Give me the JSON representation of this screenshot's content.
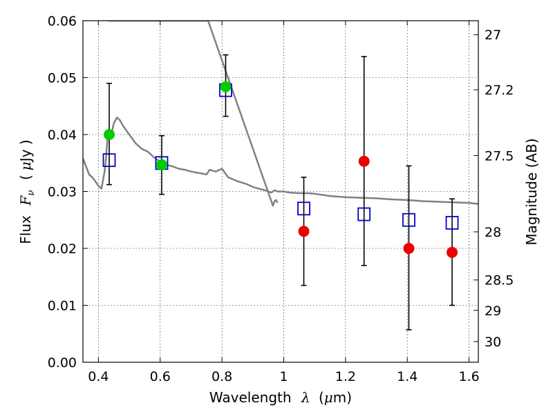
{
  "chart_data": {
    "type": "scatter",
    "title": "",
    "xlabel": "Wavelength",
    "xlabel_symbol": "λ",
    "xlabel_unit_open": "(",
    "xlabel_unit_mu": "μ",
    "xlabel_unit_rest": "m)",
    "ylabel": "Flux",
    "ylabel_symbol": "F",
    "ylabel_subscript": "ν",
    "ylabel_unit_open": "(",
    "ylabel_unit_mu": "μ",
    "ylabel_unit_rest": "Jy )",
    "y2label": "Magnitude (AB)",
    "xlim": [
      0.35,
      1.63
    ],
    "ylim": [
      0.0,
      0.06
    ],
    "grid": true,
    "x_ticks": [
      {
        "value": 0.4,
        "label": "0.4"
      },
      {
        "value": 0.6,
        "label": "0.6"
      },
      {
        "value": 0.8,
        "label": "0.8"
      },
      {
        "value": 1.0,
        "label": "1"
      },
      {
        "value": 1.2,
        "label": "1.2"
      },
      {
        "value": 1.4,
        "label": "1.4"
      },
      {
        "value": 1.6,
        "label": "1.6"
      }
    ],
    "y_ticks": [
      {
        "value": 0.0,
        "label": "0.00"
      },
      {
        "value": 0.01,
        "label": "0.01"
      },
      {
        "value": 0.02,
        "label": "0.02"
      },
      {
        "value": 0.03,
        "label": "0.03"
      },
      {
        "value": 0.04,
        "label": "0.04"
      },
      {
        "value": 0.05,
        "label": "0.05"
      },
      {
        "value": 0.06,
        "label": "0.06"
      }
    ],
    "mag_ticks": [
      {
        "value": 27.0,
        "label": "27"
      },
      {
        "value": 27.2,
        "label": "27.2"
      },
      {
        "value": 27.5,
        "label": "27.5"
      },
      {
        "value": 28.0,
        "label": "28"
      },
      {
        "value": 28.5,
        "label": "28.5"
      },
      {
        "value": 29.0,
        "label": "29"
      },
      {
        "value": 30.0,
        "label": "30"
      }
    ],
    "series": [
      {
        "type": "line",
        "color": "#808080",
        "x": [
          0.35,
          0.37,
          0.38,
          0.39,
          0.4,
          0.41,
          0.42,
          0.425,
          0.43,
          0.44,
          0.45,
          0.46,
          0.47,
          0.48,
          0.5,
          0.52,
          0.54,
          0.56,
          0.58,
          0.6,
          0.62,
          0.64,
          0.66,
          0.68,
          0.7,
          0.72,
          0.74,
          0.75,
          0.76,
          0.78,
          0.8,
          0.82,
          0.85,
          0.88,
          0.9,
          0.92,
          0.94,
          0.96,
          0.97,
          0.98,
          0.99,
          1.0,
          1.02,
          1.05,
          1.08,
          1.1,
          1.15,
          1.2,
          1.25,
          1.3,
          1.35,
          1.4,
          1.45,
          1.5,
          1.55,
          1.6,
          1.63
        ],
        "y": [
          0.0358,
          0.033,
          0.0325,
          0.0318,
          0.031,
          0.0305,
          0.0335,
          0.036,
          0.04,
          0.0395,
          0.042,
          0.043,
          0.0425,
          0.0415,
          0.04,
          0.0385,
          0.0375,
          0.037,
          0.036,
          0.0352,
          0.0347,
          0.0344,
          0.034,
          0.0338,
          0.0335,
          0.0333,
          0.0331,
          0.033,
          0.0338,
          0.0335,
          0.034,
          0.0325,
          0.0318,
          0.0313,
          0.0308,
          0.0305,
          0.0302,
          0.0298,
          0.0302,
          0.03,
          0.03,
          0.03,
          0.0298,
          0.0297,
          0.0297,
          0.0296,
          0.0292,
          0.029,
          0.0289,
          0.0288,
          0.0286,
          0.0285,
          0.0283,
          0.0282,
          0.0281,
          0.028,
          0.0278
        ]
      },
      {
        "type": "line",
        "color": "#808080",
        "x": [
          0.432,
          0.437,
          0.442,
          0.455,
          0.46,
          0.466,
          0.47,
          0.55,
          0.553,
          0.556,
          0.559,
          0.562,
          0.565,
          0.568,
          0.74,
          0.743,
          0.746,
          0.749,
          0.752,
          0.755,
          0.965,
          0.97,
          0.975,
          0.98
        ],
        "y": [
          0.06,
          0.06,
          0.06,
          0.06,
          0.06,
          0.06,
          0.06,
          0.06,
          0.06,
          0.06,
          0.06,
          0.06,
          0.06,
          0.06,
          0.06,
          0.06,
          0.06,
          0.06,
          0.06,
          0.06,
          0.0275,
          0.0283,
          0.0285,
          0.028
        ]
      },
      {
        "type": "errorbar",
        "color": "#000000",
        "x": [
          0.435,
          0.605,
          0.812,
          1.065,
          1.26,
          1.405,
          1.545
        ],
        "y": [
          0.0355,
          0.035,
          0.0475,
          0.027,
          0.0262,
          0.025,
          0.0245
        ],
        "err_low": [
          0.0312,
          0.0295,
          0.0432,
          0.0135,
          0.017,
          0.0057,
          0.01
        ],
        "err_high": [
          0.049,
          0.0398,
          0.054,
          0.0325,
          0.0537,
          0.0345,
          0.0287
        ]
      },
      {
        "type": "scatter",
        "marker": "square",
        "color": "#0000cc",
        "x": [
          0.435,
          0.605,
          0.812,
          1.065,
          1.26,
          1.405,
          1.545
        ],
        "y": [
          0.0355,
          0.035,
          0.0478,
          0.027,
          0.026,
          0.025,
          0.0245
        ]
      },
      {
        "type": "scatter",
        "marker": "circle",
        "color": "#00cc00",
        "x": [
          0.435,
          0.605,
          0.812
        ],
        "y": [
          0.04,
          0.0347,
          0.0484
        ]
      },
      {
        "type": "scatter",
        "marker": "circle",
        "color": "#ee0000",
        "x": [
          1.065,
          1.26,
          1.405,
          1.545
        ],
        "y": [
          0.023,
          0.0353,
          0.02,
          0.0193
        ]
      }
    ]
  }
}
